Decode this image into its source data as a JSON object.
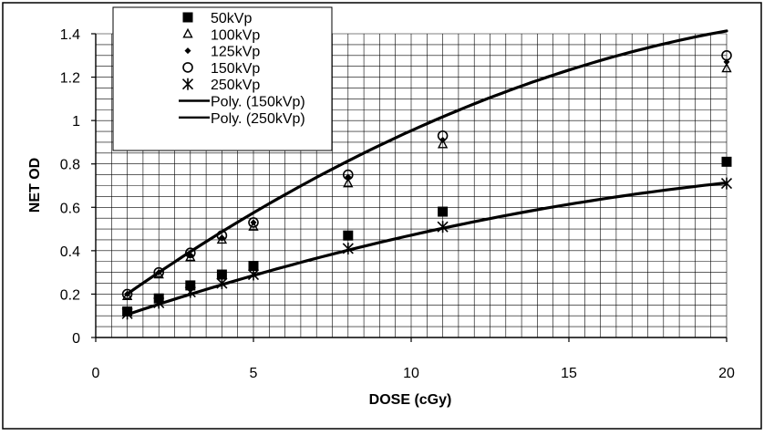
{
  "chart_data": {
    "type": "scatter",
    "xlabel": "DOSE (cGy)",
    "ylabel": "NET OD",
    "xlim": [
      0,
      20
    ],
    "ylim": [
      0,
      1.4
    ],
    "xticks": [
      0,
      5,
      10,
      15,
      20
    ],
    "yticks": [
      0,
      0.2,
      0.4,
      0.6,
      0.8,
      1,
      1.2,
      1.4
    ],
    "ytick_labels": [
      "0",
      "0.2",
      "0.4",
      "0.6",
      "0.8",
      "1",
      "1.2",
      "1.4"
    ],
    "grid": true,
    "legend_position": "top-left",
    "series": [
      {
        "name": "50kVp",
        "marker": "square",
        "x": [
          1,
          2,
          3,
          4,
          5,
          8,
          11,
          20
        ],
        "y": [
          0.12,
          0.18,
          0.24,
          0.29,
          0.33,
          0.47,
          0.58,
          0.81
        ]
      },
      {
        "name": "100kVp",
        "marker": "triangle",
        "x": [
          1,
          2,
          3,
          4,
          5,
          8,
          11,
          20
        ],
        "y": [
          0.19,
          0.29,
          0.37,
          0.45,
          0.51,
          0.71,
          0.89,
          1.24
        ]
      },
      {
        "name": "125kVp",
        "marker": "diamond",
        "x": [
          1,
          2,
          3,
          4,
          5,
          8,
          11,
          20
        ],
        "y": [
          0.2,
          0.3,
          0.38,
          0.46,
          0.53,
          0.74,
          0.91,
          1.27
        ]
      },
      {
        "name": "150kVp",
        "marker": "circle",
        "x": [
          1,
          2,
          3,
          4,
          5,
          8,
          11,
          20
        ],
        "y": [
          0.2,
          0.3,
          0.39,
          0.47,
          0.53,
          0.75,
          0.93,
          1.3
        ]
      },
      {
        "name": "250kVp",
        "marker": "asterisk",
        "x": [
          1,
          2,
          3,
          4,
          5,
          8,
          11,
          20
        ],
        "y": [
          0.11,
          0.16,
          0.21,
          0.25,
          0.29,
          0.41,
          0.51,
          0.71
        ]
      }
    ],
    "trendlines": [
      {
        "name": "Poly. (150kVp)",
        "coef": [
          0.0972,
          0.1054,
          -0.00198
        ]
      },
      {
        "name": "Poly. (250kVp)",
        "coef": [
          0.0565,
          0.0502,
          -0.00087
        ]
      }
    ]
  }
}
